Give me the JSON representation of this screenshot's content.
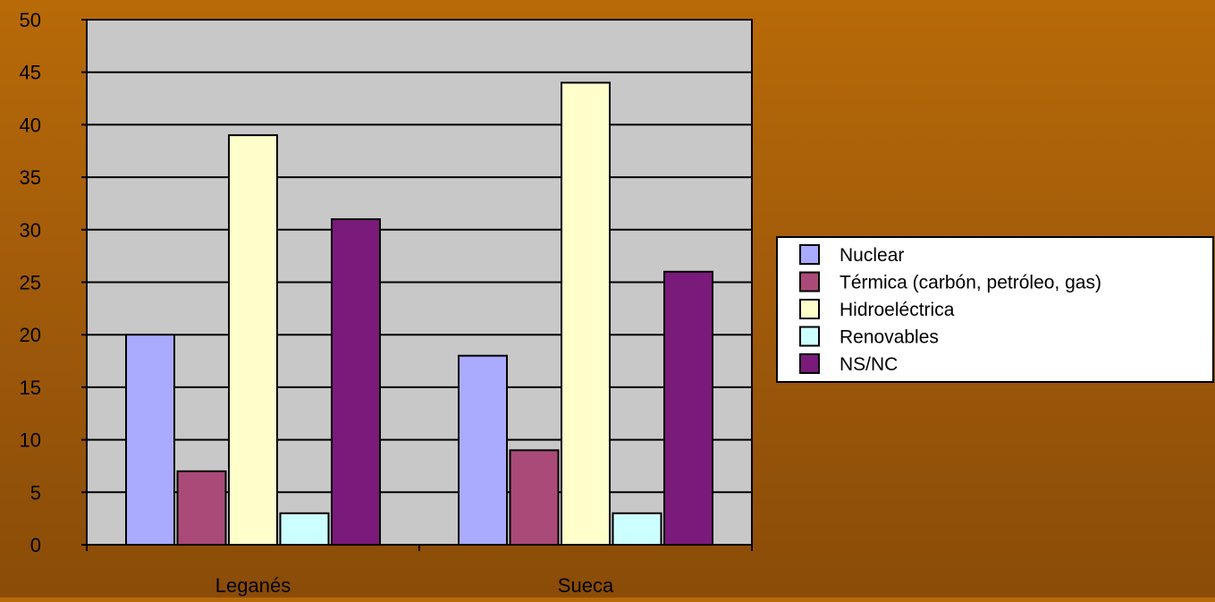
{
  "chart_data": {
    "type": "bar",
    "categories": [
      "Leganés",
      "Sueca"
    ],
    "series": [
      {
        "name": "Nuclear",
        "values": [
          20,
          18
        ],
        "color": "#aaaaff"
      },
      {
        "name": "Térmica (carbón, petróleo, gas)",
        "values": [
          7,
          9
        ],
        "color": "#aa4a78"
      },
      {
        "name": "Hidroeléctrica",
        "values": [
          39,
          44
        ],
        "color": "#ffffcc"
      },
      {
        "name": "Renovables",
        "values": [
          3,
          3
        ],
        "color": "#ccffff"
      },
      {
        "name": "NS/NC",
        "values": [
          31,
          26
        ],
        "color": "#7a1a7a"
      }
    ],
    "yticks": [
      "0",
      "5",
      "10",
      "15",
      "20",
      "25",
      "30",
      "35",
      "40",
      "45",
      "50"
    ],
    "ylim": [
      0,
      50
    ],
    "grid": true,
    "legend_position": "right",
    "plot_background": "#c8c8c8"
  }
}
